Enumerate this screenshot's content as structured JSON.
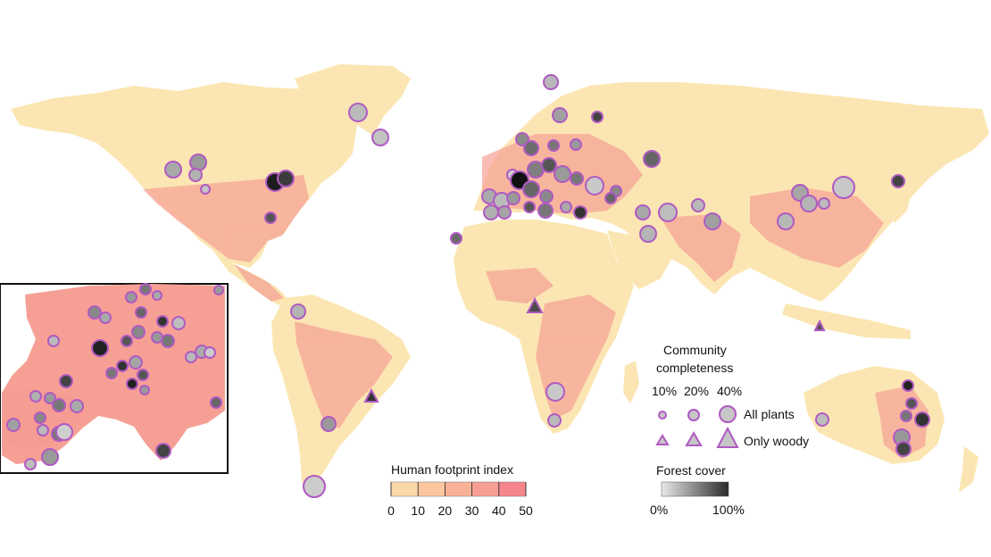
{
  "legend": {
    "community": {
      "title_line1": "Community",
      "title_line2": "completeness",
      "sizes": [
        "10%",
        "20%",
        "40%"
      ],
      "all_plants": "All plants",
      "only_woody": "Only woody"
    },
    "footprint": {
      "title": "Human footprint index",
      "ticks": [
        "0",
        "10",
        "20",
        "30",
        "40",
        "50"
      ],
      "colors": [
        "#fbeab8",
        "#fcd8a8",
        "#fcc69e",
        "#f9b197",
        "#f79d92",
        "#f5868c"
      ]
    },
    "forest": {
      "title": "Forest cover",
      "min_label": "0%",
      "max_label": "100%",
      "low_color": "#e8e8e8",
      "high_color": "#2a2a2a"
    }
  },
  "colors": {
    "marker_stroke": "#b05ac2",
    "land_base": "#fbe6b3",
    "footprint_high": "#f6a095"
  }
}
